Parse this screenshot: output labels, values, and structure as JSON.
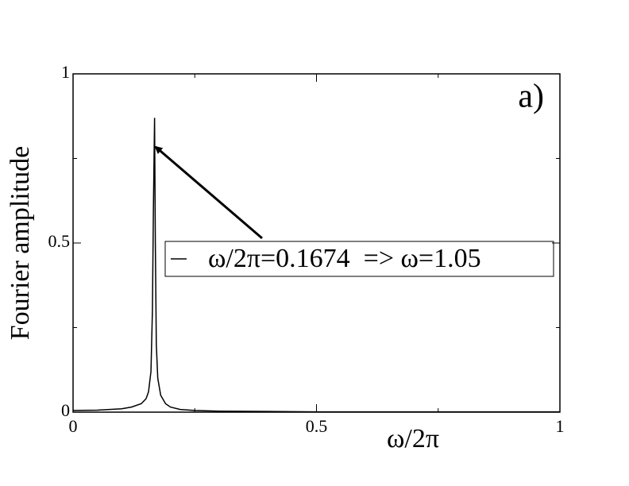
{
  "chart_data": {
    "type": "line",
    "xlabel": "ω/2π",
    "ylabel": "Fourier amplitude",
    "annotation": "a)",
    "x": [
      0,
      0.05,
      0.1,
      0.12,
      0.14,
      0.15,
      0.155,
      0.16,
      0.163,
      0.165,
      0.1674,
      0.169,
      0.171,
      0.174,
      0.18,
      0.19,
      0.2,
      0.22,
      0.25,
      0.3,
      0.4,
      0.5,
      0.7,
      1
    ],
    "series": [
      {
        "name": "ω/2π=0.1674  => ω=1.05",
        "color": "#000000",
        "values": [
          0.005,
          0.006,
          0.01,
          0.015,
          0.025,
          0.04,
          0.06,
          0.12,
          0.3,
          0.6,
          0.87,
          0.5,
          0.2,
          0.1,
          0.05,
          0.025,
          0.015,
          0.008,
          0.005,
          0.003,
          0.002,
          0.001,
          0.001,
          0.001
        ]
      }
    ],
    "xlim": [
      0,
      1
    ],
    "ylim": [
      0,
      1
    ],
    "xticks": [
      0,
      0.5,
      1
    ],
    "yticks": [
      0,
      0.5,
      1
    ],
    "xminorticks": [
      0.25,
      0.75
    ],
    "yminorticks": [
      0.25,
      0.75
    ],
    "grid": false
  }
}
